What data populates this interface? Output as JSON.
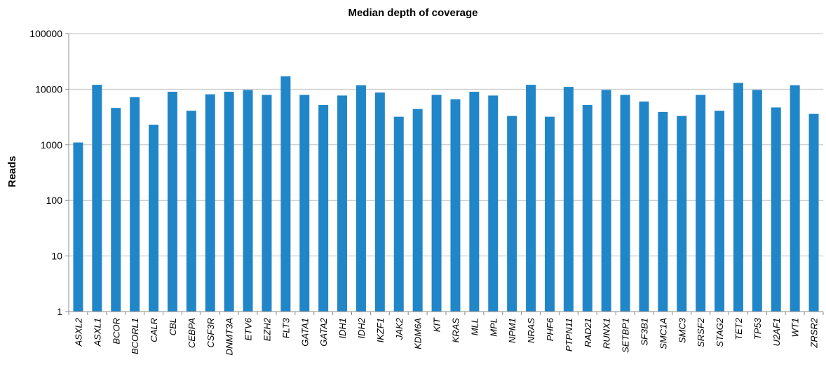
{
  "chart_data": {
    "type": "bar",
    "title": "Median depth of coverage",
    "xlabel": "",
    "ylabel": "Reads",
    "y_scale": "log",
    "ylim": [
      1,
      100000
    ],
    "yticks": [
      "100000",
      "10000",
      "1000",
      "100",
      "10",
      "1"
    ],
    "grid": true,
    "legend": "none",
    "categories": [
      "ASXL2",
      "ASXL1",
      "BCOR",
      "BCORL1",
      "CALR",
      "CBL",
      "CEBPA",
      "CSF3R",
      "DNMT3A",
      "ETV6",
      "EZH2",
      "FLT3",
      "GATA1",
      "GATA2",
      "IDH1",
      "IDH2",
      "IKZF1",
      "JAK2",
      "KDM6A",
      "KIT",
      "KRAS",
      "MLL",
      "MPL",
      "NPM1",
      "NRAS",
      "PHF6",
      "PTPN11",
      "RAD21",
      "RUNX1",
      "SETBP1",
      "SF3B1",
      "SMC1A",
      "SMC3",
      "SRSF2",
      "STAG2",
      "TET2",
      "TP53",
      "U2AF1",
      "WT1",
      "ZRSR2"
    ],
    "values": [
      1100,
      12000,
      4600,
      7200,
      2300,
      9000,
      4100,
      8100,
      9000,
      9700,
      7900,
      17000,
      7900,
      5200,
      7700,
      11800,
      8700,
      3200,
      4400,
      7900,
      6600,
      9000,
      7700,
      3300,
      12000,
      3200,
      11000,
      5200,
      9700,
      7900,
      6000,
      3900,
      3300,
      7900,
      4100,
      13000,
      9700,
      4700,
      11800,
      3600
    ],
    "colors": {
      "bar": "#2186c8",
      "axis": "#8c8c8c",
      "grid": "#bfbfbf"
    }
  }
}
